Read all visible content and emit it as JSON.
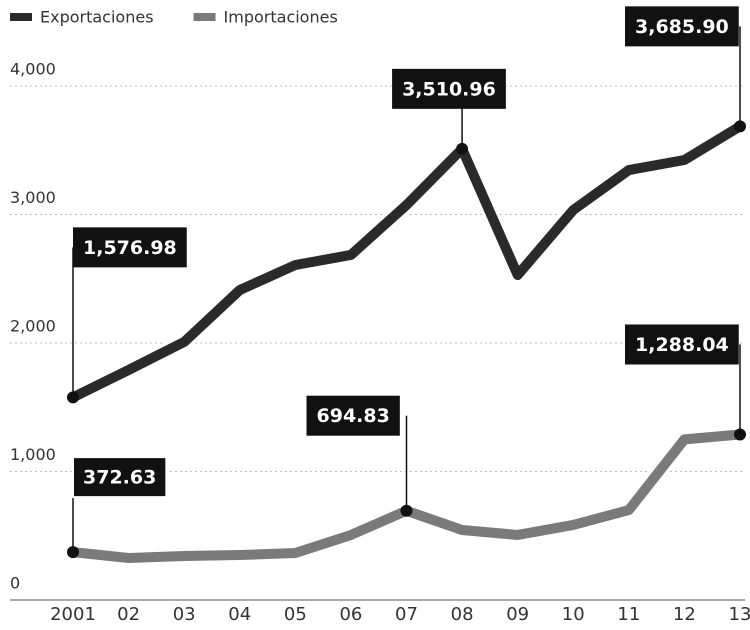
{
  "chart_data": {
    "type": "line",
    "categories": [
      "2001",
      "02",
      "03",
      "04",
      "05",
      "06",
      "07",
      "08",
      "09",
      "10",
      "11",
      "12",
      "13"
    ],
    "series": [
      {
        "name": "Exportaciones",
        "color": "#2a2a2a",
        "values": [
          1576.98,
          1790,
          2008,
          2412,
          2607,
          2685,
          3074,
          3510.96,
          2529,
          3035,
          3346,
          3424,
          3685.9
        ],
        "value_labels": [
          "1,576.98",
          null,
          null,
          null,
          null,
          null,
          null,
          "3,510.96",
          null,
          null,
          null,
          null,
          "3,685.90"
        ]
      },
      {
        "name": "Importaciones",
        "color": "#7a7a7a",
        "values": [
          372.63,
          327,
          342,
          350,
          366,
          506,
          694.83,
          545,
          506,
          584,
          700,
          1250,
          1288.04
        ],
        "value_labels": [
          "372.63",
          null,
          null,
          null,
          null,
          null,
          "694.83",
          null,
          null,
          null,
          null,
          null,
          "1,288.04"
        ]
      }
    ],
    "ylim": [
      0,
      4000
    ],
    "yticks": [
      0,
      {
        "value": 1000,
        "label": "1,000"
      },
      {
        "value": 2000,
        "label": "2,000"
      },
      {
        "value": 3000,
        "label": "3,000"
      },
      {
        "value": 4000,
        "label": "4,000"
      }
    ],
    "grid": true,
    "legend": "top-left"
  }
}
